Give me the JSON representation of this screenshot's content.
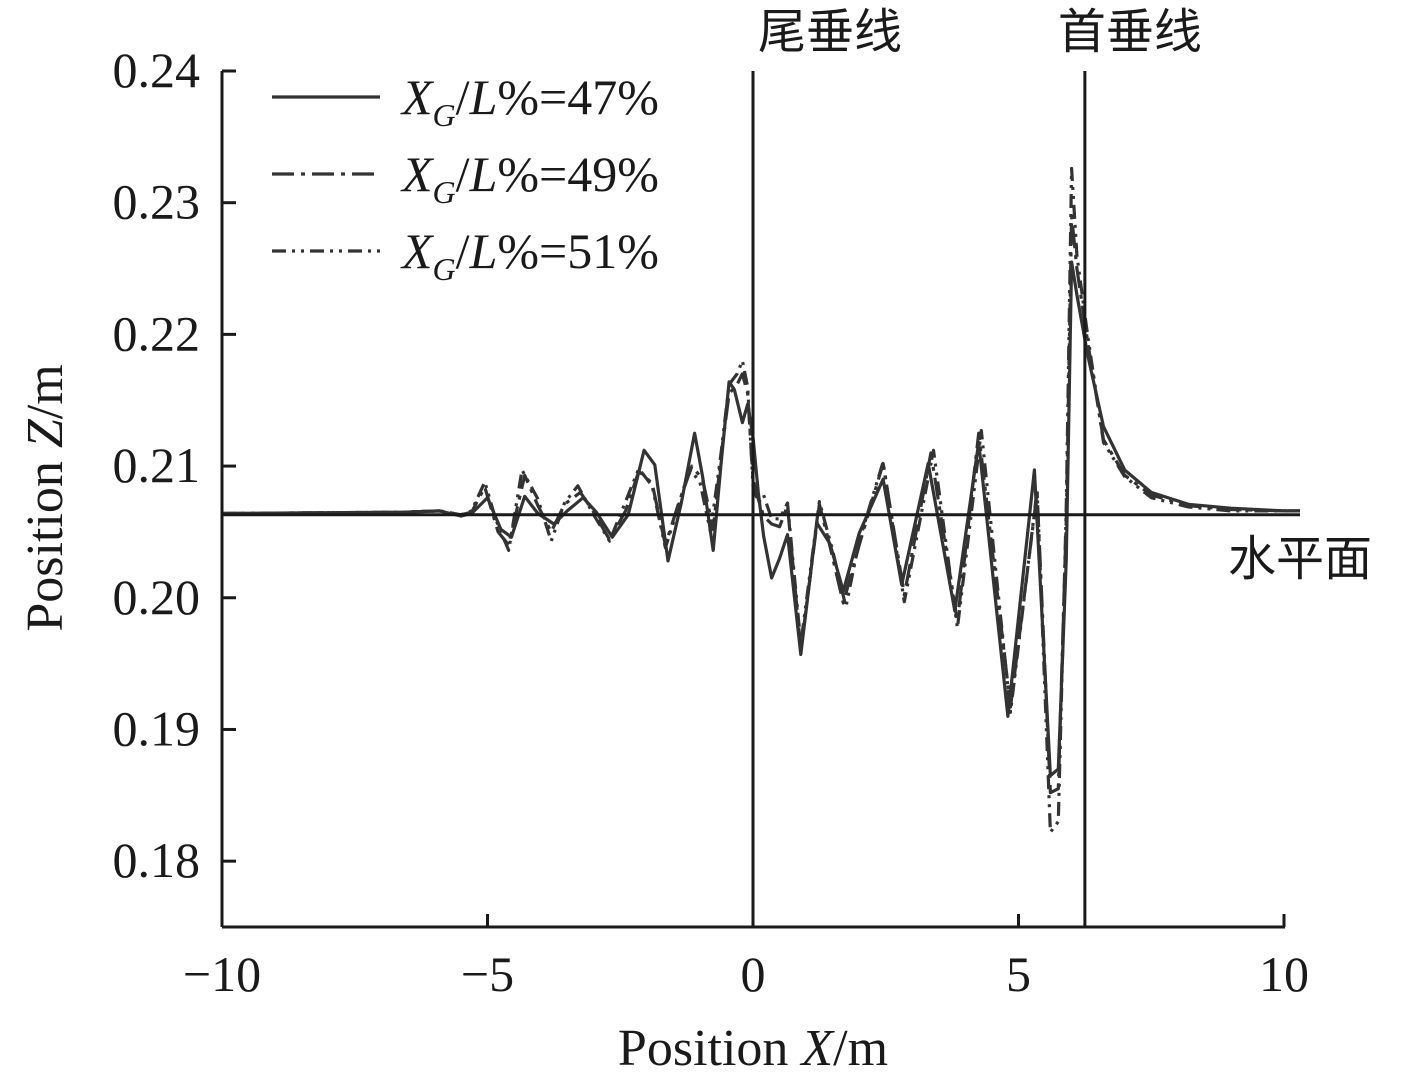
{
  "chart_data": {
    "type": "line",
    "xlabel_prefix": "Position ",
    "xlabel_var": "X",
    "xlabel_unit": "/m",
    "ylabel_prefix": "Position ",
    "ylabel_var": "Z",
    "ylabel_unit": "/m",
    "xlim": [
      -10,
      10
    ],
    "ylim": [
      0.175,
      0.24
    ],
    "xticks": [
      -10,
      -5,
      0,
      5,
      10
    ],
    "xtick_labels": [
      "−10",
      "−5",
      "0",
      "5",
      "10"
    ],
    "yticks": [
      0.18,
      0.19,
      0.2,
      0.21,
      0.22,
      0.23,
      0.24
    ],
    "ytick_labels": [
      "0.18",
      "0.19",
      "0.20",
      "0.21",
      "0.22",
      "0.23",
      "0.24"
    ],
    "grid": false,
    "legend_position": "top-left",
    "annotations": {
      "aft_perpendicular": {
        "label": "尾垂线",
        "x": 0
      },
      "forward_perpendicular": {
        "label": "首垂线",
        "x": 6.25
      },
      "water_surface": {
        "label": "水平面",
        "y": 0.2063
      }
    },
    "series": [
      {
        "name": "X_G/L%=47%",
        "legend": {
          "var": "X",
          "sub": "G",
          "rest": "/L%=47%"
        },
        "style": "solid",
        "x": [
          -10,
          -6.6,
          -5.9,
          -5.5,
          -5.3,
          -5.0,
          -4.75,
          -4.55,
          -4.3,
          -4.05,
          -3.75,
          -3.5,
          -3.2,
          -2.95,
          -2.65,
          -2.35,
          -2.05,
          -1.85,
          -1.6,
          -1.35,
          -1.1,
          -0.95,
          -0.75,
          -0.6,
          -0.45,
          -0.35,
          -0.2,
          -0.1,
          0,
          0.1,
          0.2,
          0.35,
          0.5,
          0.65,
          0.9,
          1.2,
          1.45,
          1.7,
          2.0,
          2.45,
          2.8,
          3.3,
          3.8,
          4.25,
          4.8,
          5.3,
          5.6,
          5.75,
          5.9,
          6.0,
          6.1,
          6.3,
          6.6,
          7.0,
          7.5,
          8.2,
          9.0,
          10.0,
          10.3
        ],
        "y": [
          0.2064,
          0.2065,
          0.2066,
          0.2062,
          0.2064,
          0.2076,
          0.2052,
          0.2046,
          0.2077,
          0.2064,
          0.2056,
          0.2066,
          0.2076,
          0.2065,
          0.2046,
          0.2063,
          0.2112,
          0.2101,
          0.2028,
          0.2072,
          0.2125,
          0.2092,
          0.2036,
          0.2102,
          0.2164,
          0.2158,
          0.2133,
          0.2147,
          0.2122,
          0.208,
          0.2047,
          0.2015,
          0.203,
          0.2048,
          0.1957,
          0.2057,
          0.2041,
          0.2005,
          0.2049,
          0.209,
          0.201,
          0.2102,
          0.199,
          0.2118,
          0.191,
          0.2097,
          0.1865,
          0.187,
          0.203,
          0.2255,
          0.223,
          0.2185,
          0.213,
          0.2097,
          0.208,
          0.2071,
          0.2068,
          0.2066,
          0.2066
        ]
      },
      {
        "name": "X_G/L%=49%",
        "legend": {
          "var": "X",
          "sub": "G",
          "rest": "/L%=49%"
        },
        "style": "dashdot",
        "x": [
          -10,
          -6.6,
          -5.9,
          -5.5,
          -5.3,
          -5.05,
          -4.8,
          -4.6,
          -4.3,
          -4.05,
          -3.8,
          -3.55,
          -3.25,
          -3.0,
          -2.7,
          -2.4,
          -2.15,
          -1.9,
          -1.65,
          -1.4,
          -1.15,
          -0.95,
          -0.75,
          -0.6,
          -0.45,
          -0.3,
          -0.2,
          -0.1,
          0,
          0.1,
          0.2,
          0.35,
          0.5,
          0.65,
          0.9,
          1.25,
          1.45,
          1.7,
          2.0,
          2.45,
          2.85,
          3.35,
          3.85,
          4.25,
          4.85,
          5.35,
          5.6,
          5.75,
          5.9,
          6.0,
          6.1,
          6.3,
          6.6,
          7.0,
          7.5,
          8.2,
          9.0,
          10.0,
          10.3
        ],
        "y": [
          0.2064,
          0.2065,
          0.2066,
          0.2063,
          0.2065,
          0.2084,
          0.205,
          0.204,
          0.2093,
          0.207,
          0.205,
          0.2071,
          0.208,
          0.2065,
          0.2044,
          0.2066,
          0.2096,
          0.2087,
          0.204,
          0.2072,
          0.21,
          0.209,
          0.2052,
          0.2108,
          0.2155,
          0.2162,
          0.217,
          0.2155,
          0.209,
          0.2075,
          0.2062,
          0.2056,
          0.2054,
          0.207,
          0.196,
          0.2071,
          0.2039,
          0.1996,
          0.204,
          0.2102,
          0.2002,
          0.211,
          0.1982,
          0.2125,
          0.1917,
          0.208,
          0.1852,
          0.1855,
          0.206,
          0.229,
          0.225,
          0.2195,
          0.212,
          0.2093,
          0.2078,
          0.207,
          0.2067,
          0.2066,
          0.2066
        ]
      },
      {
        "name": "X_G/L%=51%",
        "legend": {
          "var": "X",
          "sub": "G",
          "rest": "/L%=51%"
        },
        "style": "dashdotdot",
        "x": [
          -10,
          -6.6,
          -5.9,
          -5.5,
          -5.3,
          -5.05,
          -4.85,
          -4.6,
          -4.35,
          -4.05,
          -3.8,
          -3.55,
          -3.3,
          -3.0,
          -2.7,
          -2.45,
          -2.15,
          -1.9,
          -1.65,
          -1.4,
          -1.2,
          -1.0,
          -0.8,
          -0.6,
          -0.45,
          -0.3,
          -0.2,
          -0.1,
          0,
          0.1,
          0.2,
          0.35,
          0.5,
          0.65,
          0.9,
          1.25,
          1.5,
          1.75,
          2.0,
          2.45,
          2.85,
          3.4,
          3.85,
          4.3,
          4.85,
          5.35,
          5.6,
          5.75,
          5.9,
          6.0,
          6.1,
          6.3,
          6.6,
          7.0,
          7.5,
          8.2,
          9.0,
          10.0,
          10.3
        ],
        "y": [
          0.2064,
          0.2065,
          0.2066,
          0.2063,
          0.2066,
          0.2088,
          0.206,
          0.2036,
          0.2097,
          0.2075,
          0.2043,
          0.2072,
          0.2085,
          0.2063,
          0.2043,
          0.2068,
          0.2098,
          0.2085,
          0.2038,
          0.207,
          0.2098,
          0.2088,
          0.205,
          0.211,
          0.2162,
          0.217,
          0.218,
          0.216,
          0.2085,
          0.2072,
          0.2078,
          0.206,
          0.206,
          0.2072,
          0.1965,
          0.2073,
          0.2036,
          0.1993,
          0.2043,
          0.2103,
          0.1997,
          0.2112,
          0.1977,
          0.2127,
          0.1913,
          0.2082,
          0.1822,
          0.183,
          0.207,
          0.2326,
          0.226,
          0.22,
          0.2118,
          0.2092,
          0.2076,
          0.2069,
          0.2066,
          0.2066,
          0.2066
        ]
      }
    ]
  }
}
